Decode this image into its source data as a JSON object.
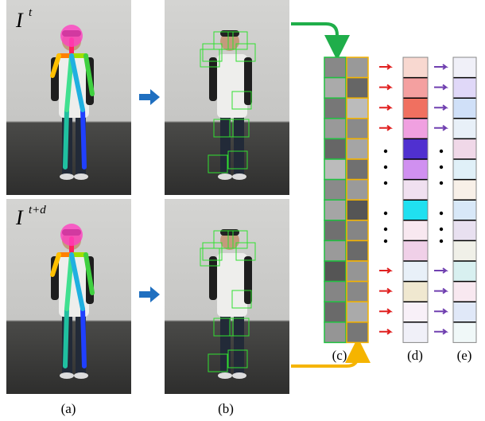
{
  "frames": [
    {
      "symbol": "I",
      "superscript": "t"
    },
    {
      "symbol": "I",
      "superscript": "t+d"
    }
  ],
  "panels": [
    {
      "label": "(a)"
    },
    {
      "label": "(b)"
    },
    {
      "label": "(c)"
    },
    {
      "label": "(d)"
    },
    {
      "label": "(e)"
    }
  ]
}
